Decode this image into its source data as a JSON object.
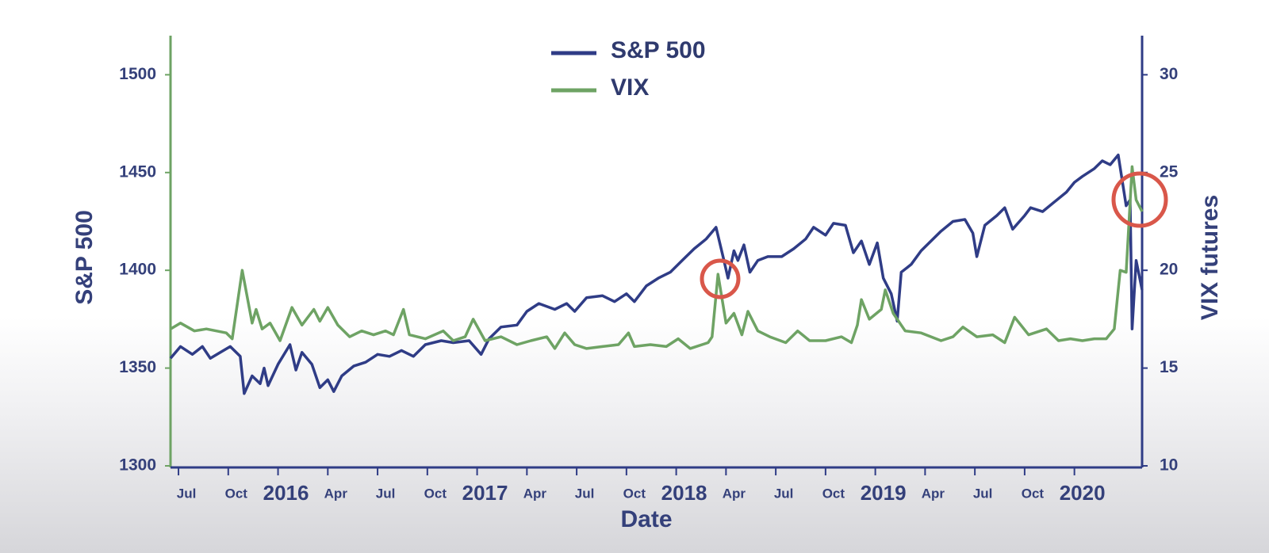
{
  "chart_data": {
    "type": "line",
    "x_label": "Date",
    "y_label": "S&P 500",
    "y2_label": "VIX futures",
    "legend": "top",
    "xlim": [
      2015.46,
      2020.34
    ],
    "xticks": [
      {
        "value": 2015.5,
        "label": "Jul"
      },
      {
        "value": 2015.75,
        "label": "Oct"
      },
      2016,
      {
        "value": 2016.25,
        "label": "Apr"
      },
      {
        "value": 2016.5,
        "label": "Jul"
      },
      {
        "value": 2016.75,
        "label": "Oct"
      },
      2017,
      {
        "value": 2017.25,
        "label": "Apr"
      },
      {
        "value": 2017.5,
        "label": "Jul"
      },
      {
        "value": 2017.75,
        "label": "Oct"
      },
      2018,
      {
        "value": 2018.25,
        "label": "Apr"
      },
      {
        "value": 2018.5,
        "label": "Jul"
      },
      {
        "value": 2018.75,
        "label": "Oct"
      },
      2019,
      {
        "value": 2019.25,
        "label": "Apr"
      },
      {
        "value": 2019.5,
        "label": "Jul"
      },
      {
        "value": 2019.75,
        "label": "Oct"
      },
      2020
    ],
    "ylim": [
      1300,
      1520
    ],
    "yticks": [
      1300,
      1350,
      1400,
      1450,
      1500
    ],
    "y2lim": [
      10,
      32
    ],
    "y2ticks": [
      10,
      15,
      20,
      25,
      30
    ],
    "series": [
      {
        "name": "S&P 500",
        "color": "#2f3c86",
        "axis": "y",
        "x": [
          2015.46,
          2015.51,
          2015.57,
          2015.62,
          2015.66,
          2015.71,
          2015.76,
          2015.81,
          2015.83,
          2015.87,
          2015.91,
          2015.93,
          2015.95,
          2016.0,
          2016.06,
          2016.09,
          2016.12,
          2016.17,
          2016.21,
          2016.25,
          2016.28,
          2016.32,
          2016.38,
          2016.44,
          2016.5,
          2016.56,
          2016.62,
          2016.68,
          2016.74,
          2016.82,
          2016.88,
          2016.96,
          2017.02,
          2017.06,
          2017.12,
          2017.2,
          2017.25,
          2017.31,
          2017.39,
          2017.45,
          2017.49,
          2017.55,
          2017.63,
          2017.69,
          2017.75,
          2017.79,
          2017.85,
          2017.91,
          2017.97,
          2018.03,
          2018.09,
          2018.15,
          2018.2,
          2018.24,
          2018.26,
          2018.29,
          2018.31,
          2018.34,
          2018.37,
          2018.41,
          2018.46,
          2018.53,
          2018.59,
          2018.65,
          2018.69,
          2018.75,
          2018.79,
          2018.85,
          2018.89,
          2018.93,
          2018.97,
          2019.01,
          2019.04,
          2019.08,
          2019.11,
          2019.13,
          2019.18,
          2019.23,
          2019.27,
          2019.33,
          2019.39,
          2019.45,
          2019.49,
          2019.51,
          2019.55,
          2019.61,
          2019.65,
          2019.69,
          2019.75,
          2019.78,
          2019.84,
          2019.9,
          2019.96,
          2020.0,
          2020.04,
          2020.1,
          2020.14,
          2020.18,
          2020.22,
          2020.26,
          2020.28,
          2020.29,
          2020.31,
          2020.34
        ],
        "values": [
          1355,
          1361,
          1357,
          1361,
          1355,
          1358,
          1361,
          1356,
          1337,
          1346,
          1342,
          1350,
          1341,
          1352,
          1362,
          1349,
          1358,
          1352,
          1340,
          1344,
          1338,
          1346,
          1351,
          1353,
          1357,
          1356,
          1359,
          1356,
          1362,
          1364,
          1363,
          1364,
          1357,
          1365,
          1371,
          1372,
          1379,
          1383,
          1380,
          1383,
          1379,
          1386,
          1387,
          1384,
          1388,
          1384,
          1392,
          1396,
          1399,
          1405,
          1411,
          1416,
          1422,
          1405,
          1396,
          1410,
          1405,
          1413,
          1399,
          1405,
          1407,
          1407,
          1411,
          1416,
          1422,
          1418,
          1424,
          1423,
          1409,
          1415,
          1403,
          1414,
          1396,
          1388,
          1374,
          1399,
          1403,
          1410,
          1414,
          1420,
          1425,
          1426,
          1419,
          1407,
          1423,
          1428,
          1432,
          1421,
          1428,
          1432,
          1430,
          1435,
          1440,
          1445,
          1448,
          1452,
          1456,
          1454,
          1459,
          1433,
          1436,
          1370,
          1405,
          1390
        ]
      },
      {
        "name": "VIX",
        "color": "#6ea364",
        "axis": "y2",
        "x": [
          2015.46,
          2015.51,
          2015.58,
          2015.64,
          2015.74,
          2015.77,
          2015.82,
          2015.87,
          2015.89,
          2015.92,
          2015.96,
          2016.01,
          2016.07,
          2016.12,
          2016.18,
          2016.21,
          2016.25,
          2016.3,
          2016.36,
          2016.42,
          2016.48,
          2016.54,
          2016.58,
          2016.63,
          2016.66,
          2016.74,
          2016.83,
          2016.88,
          2016.94,
          2016.98,
          2017.04,
          2017.12,
          2017.2,
          2017.27,
          2017.35,
          2017.39,
          2017.44,
          2017.49,
          2017.55,
          2017.63,
          2017.71,
          2017.76,
          2017.79,
          2017.87,
          2017.95,
          2018.01,
          2018.07,
          2018.16,
          2018.18,
          2018.21,
          2018.25,
          2018.29,
          2018.33,
          2018.36,
          2018.41,
          2018.47,
          2018.55,
          2018.61,
          2018.67,
          2018.75,
          2018.83,
          2018.88,
          2018.91,
          2018.93,
          2018.97,
          2019.03,
          2019.05,
          2019.09,
          2019.15,
          2019.23,
          2019.33,
          2019.39,
          2019.44,
          2019.51,
          2019.59,
          2019.65,
          2019.7,
          2019.77,
          2019.86,
          2019.92,
          2019.98,
          2020.04,
          2020.1,
          2020.16,
          2020.2,
          2020.23,
          2020.26,
          2020.29,
          2020.31,
          2020.34
        ],
        "values": [
          17.0,
          17.3,
          16.9,
          17.0,
          16.8,
          16.5,
          20.0,
          17.3,
          18.0,
          17.0,
          17.3,
          16.4,
          18.1,
          17.2,
          18.0,
          17.4,
          18.1,
          17.2,
          16.6,
          16.9,
          16.7,
          16.9,
          16.7,
          18.0,
          16.7,
          16.5,
          16.9,
          16.4,
          16.6,
          17.5,
          16.4,
          16.6,
          16.2,
          16.4,
          16.6,
          16.0,
          16.8,
          16.2,
          16.0,
          16.1,
          16.2,
          16.8,
          16.1,
          16.2,
          16.1,
          16.5,
          16.0,
          16.3,
          16.6,
          19.8,
          17.3,
          17.8,
          16.7,
          17.9,
          16.9,
          16.6,
          16.3,
          16.9,
          16.4,
          16.4,
          16.6,
          16.3,
          17.2,
          18.5,
          17.5,
          18.0,
          19.0,
          17.8,
          16.9,
          16.8,
          16.4,
          16.6,
          17.1,
          16.6,
          16.7,
          16.3,
          17.6,
          16.7,
          17.0,
          16.4,
          16.5,
          16.4,
          16.5,
          16.5,
          17.0,
          20.0,
          19.9,
          25.3,
          23.6,
          23.0
        ]
      }
    ]
  }
}
